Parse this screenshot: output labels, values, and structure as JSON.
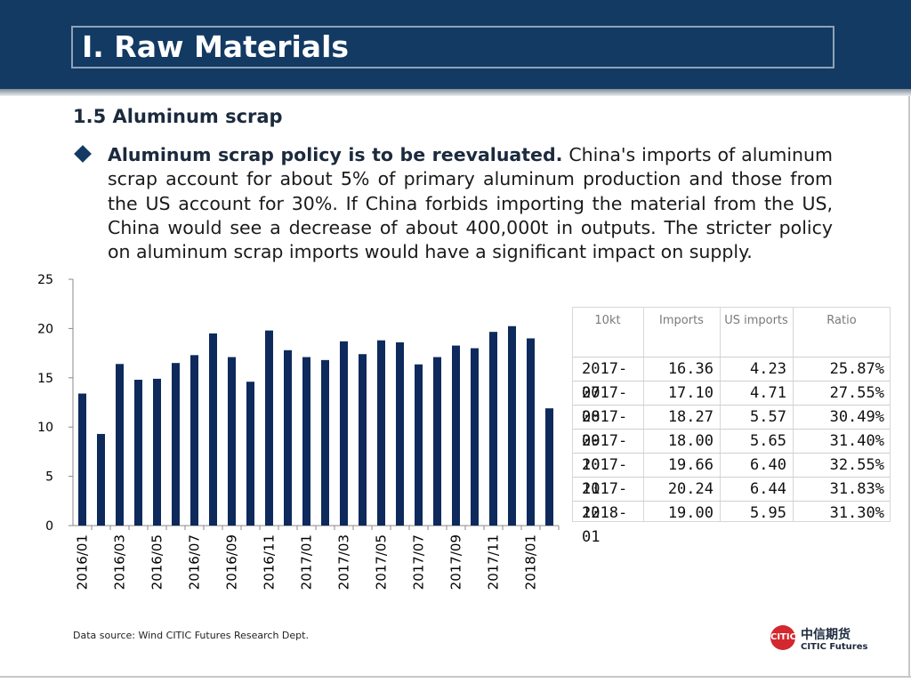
{
  "header": {
    "title": "I. Raw Materials"
  },
  "section": {
    "subtitle": "1.5 Aluminum scrap",
    "bullet_bold": "Aluminum scrap policy is to be reevaluated.",
    "bullet_text": "China's imports of aluminum scrap account for about 5% of primary aluminum production and those from the US account for 30%. If China forbids importing the material from the US, China would see a decrease of about 400,000t in outputs. The stricter policy on aluminum scrap imports would have a significant impact on supply."
  },
  "chart_data": {
    "type": "bar",
    "categories": [
      "2016/01",
      "2016/02",
      "2016/03",
      "2016/04",
      "2016/05",
      "2016/06",
      "2016/07",
      "2016/08",
      "2016/09",
      "2016/10",
      "2016/11",
      "2016/12",
      "2017/01",
      "2017/02",
      "2017/03",
      "2017/04",
      "2017/05",
      "2017/06",
      "2017/07",
      "2017/08",
      "2017/09",
      "2017/10",
      "2017/11",
      "2017/12",
      "2018/01",
      "2018/02"
    ],
    "values": [
      13.4,
      9.3,
      16.4,
      14.8,
      14.9,
      16.5,
      17.3,
      19.5,
      17.1,
      14.6,
      19.8,
      17.8,
      17.1,
      16.8,
      18.7,
      17.4,
      18.8,
      18.6,
      16.36,
      17.1,
      18.27,
      18.0,
      19.66,
      20.24,
      19.0,
      11.9
    ],
    "tick_labels": [
      "2016/01",
      "2016/03",
      "2016/05",
      "2016/07",
      "2016/09",
      "2016/11",
      "2017/01",
      "2017/03",
      "2017/05",
      "2017/07",
      "2017/09",
      "2017/11",
      "2018/01"
    ],
    "yticks": [
      "0",
      "5",
      "10",
      "15",
      "20",
      "25"
    ],
    "ylim": [
      0,
      25
    ],
    "bar_color": "#0e2a5c",
    "title": "",
    "xlabel": "",
    "ylabel": ""
  },
  "table": {
    "headers": [
      "10kt",
      "Imports",
      "US imports",
      "Ratio"
    ],
    "rows": [
      [
        "2017-07",
        "16.36",
        "4.23",
        "25.87%"
      ],
      [
        "2017-08",
        "17.10",
        "4.71",
        "27.55%"
      ],
      [
        "2017-09",
        "18.27",
        "5.57",
        "30.49%"
      ],
      [
        "2017-10",
        "18.00",
        "5.65",
        "31.40%"
      ],
      [
        "2017-11",
        "19.66",
        "6.40",
        "32.55%"
      ],
      [
        "2017-12",
        "20.24",
        "6.44",
        "31.83%"
      ],
      [
        "2018-01",
        "19.00",
        "5.95",
        "31.30%"
      ]
    ]
  },
  "footer": {
    "source": "Data source: Wind   CITIC Futures Research Dept.",
    "logo_cn": "中信期货",
    "logo_en": "CITIC Futures",
    "logo_mark": "CITIC"
  }
}
